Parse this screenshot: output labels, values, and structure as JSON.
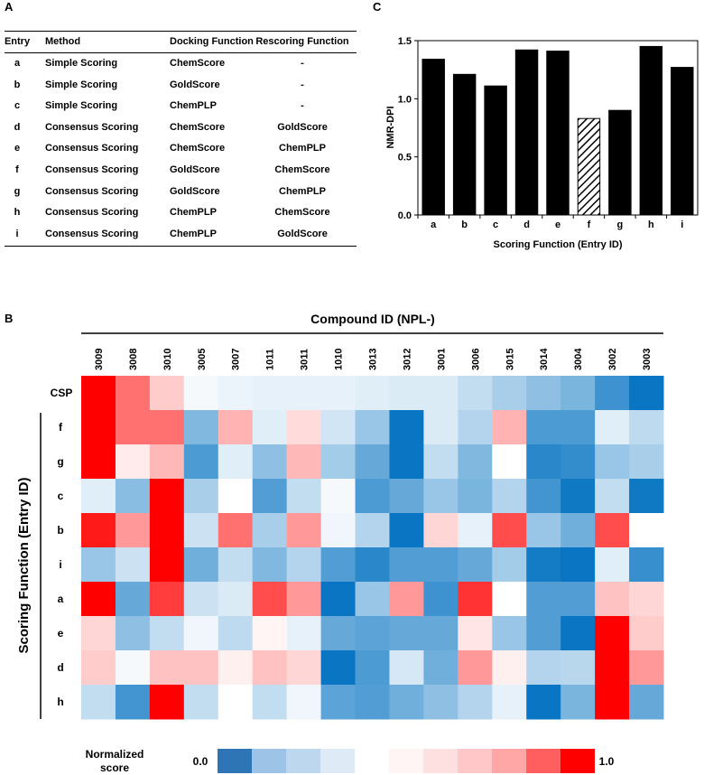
{
  "panel_labels": {
    "a": "A",
    "b": "B",
    "c": "C"
  },
  "table": {
    "headers": [
      "Entry",
      "Method",
      "Docking Function",
      "Rescoring Function"
    ],
    "rows": [
      [
        "a",
        "Simple Scoring",
        "ChemScore",
        "-"
      ],
      [
        "b",
        "Simple Scoring",
        "GoldScore",
        "-"
      ],
      [
        "c",
        "Simple Scoring",
        "ChemPLP",
        "-"
      ],
      [
        "d",
        "Consensus Scoring",
        "ChemScore",
        "GoldScore"
      ],
      [
        "e",
        "Consensus Scoring",
        "ChemScore",
        "ChemPLP"
      ],
      [
        "f",
        "Consensus Scoring",
        "GoldScore",
        "ChemScore"
      ],
      [
        "g",
        "Consensus Scoring",
        "GoldScore",
        "ChemPLP"
      ],
      [
        "h",
        "Consensus Scoring",
        "ChemPLP",
        "ChemScore"
      ],
      [
        "i",
        "Consensus Scoring",
        "ChemPLP",
        "GoldScore"
      ]
    ]
  },
  "chart_data": [
    {
      "type": "bar",
      "categories": [
        "a",
        "b",
        "c",
        "d",
        "e",
        "f",
        "g",
        "h",
        "i"
      ],
      "values": [
        1.34,
        1.21,
        1.11,
        1.42,
        1.41,
        0.83,
        0.9,
        1.45,
        1.27
      ],
      "highlight": "f",
      "bar_color": "#000000",
      "highlight_pattern": "diagonal-hatch",
      "xlabel": "Scoring Function (Entry ID)",
      "ylabel": "NMR-DPI",
      "ylim": [
        0,
        1.5
      ],
      "yticks": [
        "0.0",
        "0.5",
        "1.0",
        "1.5"
      ],
      "grid": false
    },
    {
      "type": "heatmap",
      "title": "Compound ID (NPL-)",
      "ylabel": "Scoring Function (Entry ID)",
      "columns": [
        "3009",
        "3008",
        "3010",
        "3005",
        "3007",
        "1011",
        "3011",
        "1010",
        "3013",
        "3012",
        "3001",
        "3006",
        "3015",
        "3014",
        "3004",
        "3002",
        "3003"
      ],
      "rows": [
        "CSP",
        "f",
        "g",
        "c",
        "b",
        "i",
        "a",
        "e",
        "d",
        "h"
      ],
      "values": [
        [
          1.0,
          0.78,
          0.6,
          0.48,
          0.46,
          0.45,
          0.45,
          0.45,
          0.44,
          0.43,
          0.43,
          0.38,
          0.33,
          0.28,
          0.24,
          0.12,
          0.02
        ],
        [
          1.0,
          0.78,
          0.78,
          0.25,
          0.65,
          0.44,
          0.57,
          0.41,
          0.3,
          0.02,
          0.43,
          0.35,
          0.65,
          0.15,
          0.15,
          0.44,
          0.37
        ],
        [
          1.0,
          0.54,
          0.64,
          0.15,
          0.44,
          0.28,
          0.64,
          0.32,
          0.2,
          0.02,
          0.38,
          0.25,
          0.5,
          0.08,
          0.1,
          0.3,
          0.33
        ],
        [
          0.44,
          0.27,
          1.0,
          0.33,
          0.5,
          0.16,
          0.38,
          0.48,
          0.15,
          0.2,
          0.3,
          0.24,
          0.35,
          0.13,
          0.03,
          0.38,
          0.03
        ],
        [
          0.95,
          0.7,
          1.0,
          0.4,
          0.78,
          0.33,
          0.7,
          0.47,
          0.35,
          0.02,
          0.58,
          0.45,
          0.85,
          0.3,
          0.22,
          0.85,
          0.5
        ],
        [
          0.3,
          0.4,
          1.0,
          0.22,
          0.38,
          0.25,
          0.35,
          0.16,
          0.08,
          0.16,
          0.16,
          0.2,
          0.32,
          0.04,
          0.02,
          0.44,
          0.11
        ],
        [
          1.0,
          0.2,
          0.88,
          0.4,
          0.43,
          0.85,
          0.7,
          0.02,
          0.3,
          0.7,
          0.12,
          0.9,
          0.5,
          0.16,
          0.16,
          0.62,
          0.58
        ],
        [
          0.58,
          0.28,
          0.38,
          0.47,
          0.37,
          0.52,
          0.45,
          0.2,
          0.18,
          0.2,
          0.2,
          0.55,
          0.3,
          0.16,
          0.02,
          1.0,
          0.6
        ],
        [
          0.6,
          0.48,
          0.62,
          0.62,
          0.53,
          0.62,
          0.58,
          0.02,
          0.15,
          0.42,
          0.22,
          0.7,
          0.53,
          0.35,
          0.36,
          1.0,
          0.7
        ],
        [
          0.38,
          0.13,
          1.0,
          0.38,
          0.5,
          0.38,
          0.47,
          0.18,
          0.16,
          0.22,
          0.28,
          0.35,
          0.45,
          0.02,
          0.24,
          1.0,
          0.2
        ]
      ],
      "color_low": "#0070C0",
      "color_mid": "#FFFFFF",
      "color_high": "#FF0000",
      "legend": {
        "title": "Normalized score",
        "min_label": "0.0",
        "max_label": "1.0",
        "blue_swatches": [
          "#2E75B6",
          "#9DC3E6",
          "#BDD7EE",
          "#DEEBF7"
        ],
        "red_swatches": [
          "#FFF5F5",
          "#FFE0E0",
          "#FFC7C7",
          "#FFA6A6",
          "#FF5F5F",
          "#FF0000"
        ]
      }
    }
  ]
}
